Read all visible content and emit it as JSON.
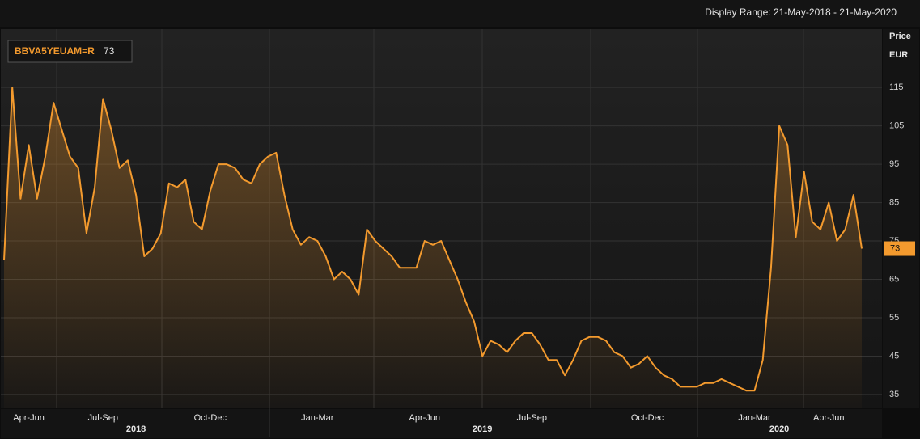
{
  "chart_data": {
    "type": "line",
    "subtitle": "Display Range: 21-May-2018 - 21-May-2020",
    "y_label": "Price",
    "y_unit": "EUR",
    "categories": [
      null,
      null,
      null,
      "Apr-Jun",
      null,
      null,
      null,
      null,
      null,
      null,
      null,
      null,
      "Jul-Sep",
      null,
      null,
      null,
      null,
      null,
      null,
      null,
      null,
      null,
      null,
      null,
      null,
      "Oct-Dec",
      null,
      null,
      null,
      null,
      null,
      null,
      null,
      null,
      null,
      null,
      null,
      null,
      "Jan-Mar",
      null,
      null,
      null,
      null,
      null,
      null,
      null,
      null,
      null,
      null,
      null,
      null,
      "Apr-Jun",
      null,
      null,
      null,
      null,
      null,
      null,
      null,
      null,
      null,
      null,
      null,
      null,
      "Jul-Sep",
      null,
      null,
      null,
      null,
      null,
      null,
      null,
      null,
      null,
      null,
      null,
      null,
      null,
      "Oct-Dec",
      null,
      null,
      null,
      null,
      null,
      null,
      null,
      null,
      null,
      null,
      null,
      null,
      "Jan-Mar",
      null,
      null,
      null,
      null,
      null,
      null,
      null,
      null,
      "Apr-Jun",
      null,
      null,
      null,
      null
    ],
    "category_groups": [
      null,
      null,
      null,
      null,
      null,
      null,
      null,
      null,
      null,
      null,
      null,
      null,
      null,
      null,
      null,
      null,
      "2018",
      null,
      null,
      null,
      null,
      null,
      null,
      null,
      null,
      null,
      null,
      null,
      null,
      null,
      null,
      null,
      null,
      null,
      null,
      null,
      null,
      null,
      null,
      null,
      null,
      null,
      null,
      null,
      null,
      null,
      null,
      null,
      null,
      null,
      null,
      null,
      null,
      null,
      null,
      null,
      null,
      null,
      "2019",
      null,
      null,
      null,
      null,
      null,
      null,
      null,
      null,
      null,
      null,
      null,
      null,
      null,
      null,
      null,
      null,
      null,
      null,
      null,
      null,
      null,
      null,
      null,
      null,
      null,
      null,
      null,
      null,
      null,
      null,
      null,
      null,
      null,
      null,
      null,
      "2020",
      null,
      null,
      null,
      null,
      null,
      null,
      null,
      null,
      null,
      null
    ],
    "series": [
      {
        "name": "BBVA5YEUAM=R",
        "color": "#f39a2e",
        "values": [
          70,
          115,
          86,
          100,
          86,
          97,
          111,
          104,
          97,
          94,
          77,
          89,
          112,
          104,
          94,
          96,
          87,
          71,
          73,
          77,
          90,
          89,
          91,
          80,
          78,
          88,
          95,
          95,
          94,
          91,
          90,
          95,
          97,
          98,
          87,
          78,
          74,
          76,
          75,
          71,
          65,
          67,
          65,
          61,
          78,
          75,
          73,
          71,
          68,
          68,
          68,
          75,
          74,
          75,
          70,
          65,
          59,
          54,
          45,
          49,
          48,
          46,
          49,
          51,
          51,
          48,
          44,
          44,
          40,
          44,
          49,
          50,
          50,
          49,
          46,
          45,
          42,
          43,
          45,
          42,
          40,
          39,
          37,
          37,
          37,
          38,
          38,
          39,
          38,
          37,
          36,
          36,
          44,
          68,
          105,
          100,
          76,
          93,
          80,
          78,
          85,
          75,
          78,
          87,
          73
        ]
      }
    ],
    "ylim": [
      31.4,
      130.2
    ],
    "yticks": [
      35,
      45,
      55,
      65,
      75,
      85,
      95,
      105,
      115
    ],
    "grid": true
  }
}
